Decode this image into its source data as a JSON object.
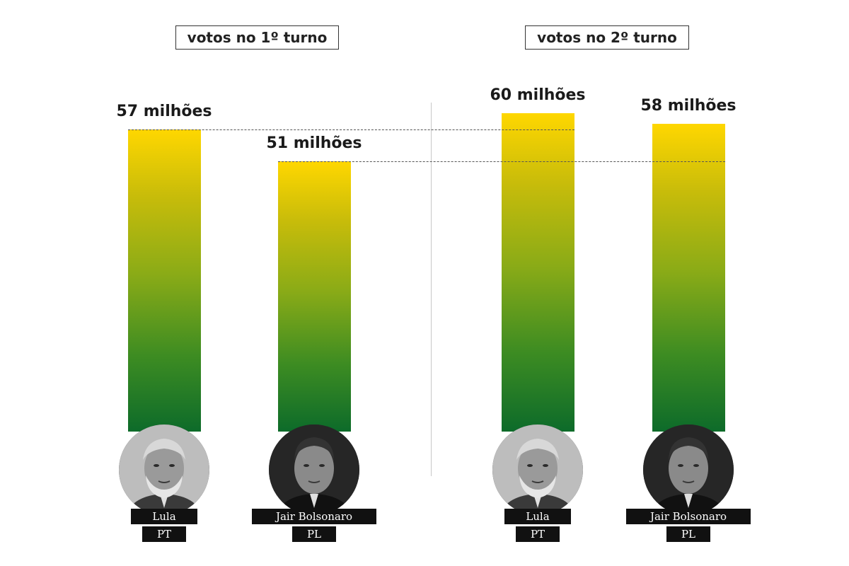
{
  "chart_data": [
    {
      "type": "bar",
      "title": "votos no 1º turno",
      "categories": [
        "Lula",
        "Jair Bolsonaro"
      ],
      "parties": [
        "PT",
        "PL"
      ],
      "values": [
        57,
        51
      ],
      "value_labels": [
        "57 milhões",
        "51 milhões"
      ],
      "unit": "milhões",
      "ylim": [
        0,
        60
      ],
      "grid": false,
      "colors": {
        "bar_top": "#ffd700",
        "bar_bottom": "#0d6b2a"
      }
    },
    {
      "type": "bar",
      "title": "votos no 2º turno",
      "categories": [
        "Lula",
        "Jair Bolsonaro"
      ],
      "parties": [
        "PT",
        "PL"
      ],
      "values": [
        60,
        58
      ],
      "value_labels": [
        "60 milhões",
        "58 milhões"
      ],
      "unit": "milhões",
      "ylim": [
        0,
        60
      ],
      "grid": false,
      "colors": {
        "bar_top": "#ffd700",
        "bar_bottom": "#0d6b2a"
      }
    }
  ],
  "icons": [
    "lula-portrait-icon",
    "bolsonaro-portrait-icon"
  ]
}
